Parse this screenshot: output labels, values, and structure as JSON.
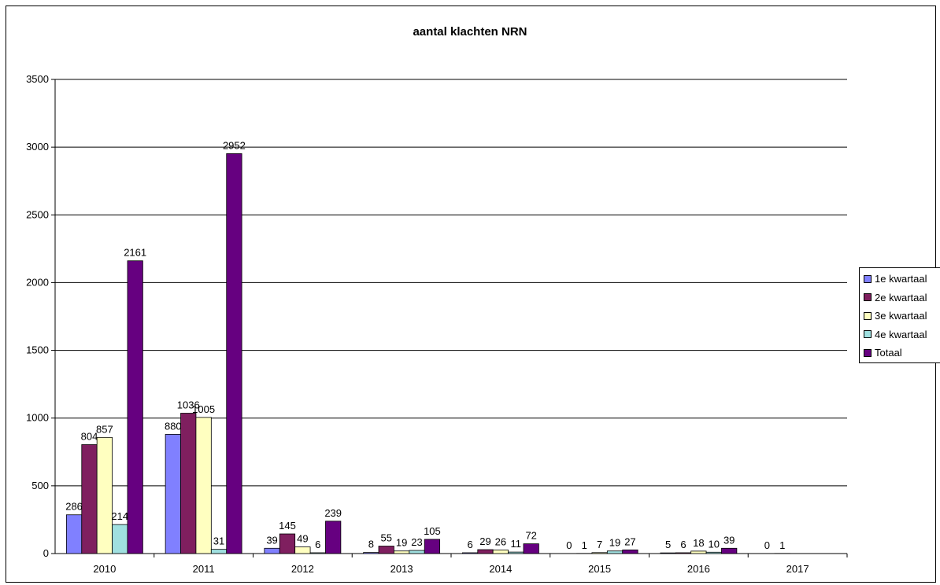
{
  "chart_data": {
    "type": "bar",
    "title": "aantal klachten NRN",
    "xlabel": "",
    "ylabel": "",
    "ylim": [
      0,
      3500
    ],
    "yticks": [
      0,
      500,
      1000,
      1500,
      2000,
      2500,
      3000,
      3500
    ],
    "categories": [
      "2010",
      "2011",
      "2012",
      "2013",
      "2014",
      "2015",
      "2016",
      "2017"
    ],
    "series": [
      {
        "name": "1e kwartaal",
        "color": "#8080ff",
        "values": [
          286,
          880,
          39,
          8,
          6,
          0,
          5,
          0
        ]
      },
      {
        "name": "2e kwartaal",
        "color": "#7f1f5f",
        "values": [
          804,
          1036,
          145,
          55,
          29,
          1,
          6,
          1
        ]
      },
      {
        "name": "3e kwartaal",
        "color": "#ffffc0",
        "values": [
          857,
          1005,
          49,
          19,
          26,
          7,
          18,
          null
        ]
      },
      {
        "name": "4e kwartaal",
        "color": "#a0e0e0",
        "values": [
          214,
          31,
          6,
          23,
          11,
          19,
          10,
          null
        ]
      },
      {
        "name": "Totaal",
        "color": "#660080",
        "values": [
          2161,
          2952,
          239,
          105,
          72,
          27,
          39,
          null
        ]
      }
    ],
    "grid": true,
    "legend_position": "right"
  }
}
